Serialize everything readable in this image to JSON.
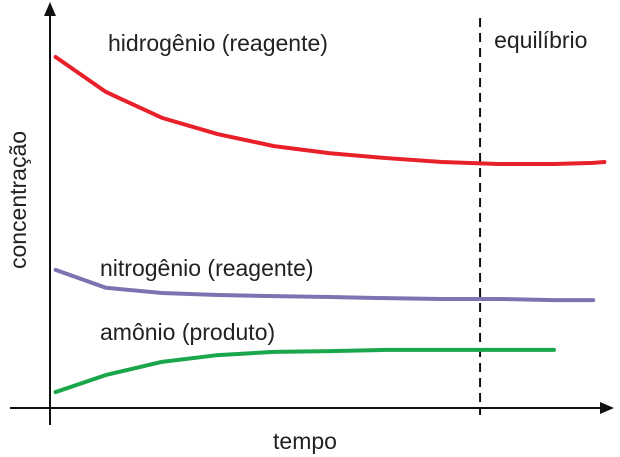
{
  "chart_data": {
    "type": "line",
    "x_label": "tempo",
    "y_label": "concentração",
    "x": [
      1,
      10,
      20,
      30,
      40,
      50,
      60,
      70,
      80,
      90,
      97,
      99
    ],
    "xlim": [
      0,
      100
    ],
    "ylim": [
      0,
      100
    ],
    "series": [
      {
        "name": "hidrogênio (reagente)",
        "color": "#e8202a",
        "values": [
          88.2,
          79.4,
          72.9,
          68.8,
          65.8,
          64.0,
          62.8,
          61.8,
          61.3,
          61.3,
          61.6,
          61.8
        ]
      },
      {
        "name": "nitrogênio (reagente)",
        "color": "#7b74b0",
        "values": [
          34.7,
          30.2,
          28.9,
          28.4,
          28.1,
          27.9,
          27.6,
          27.4,
          27.4,
          27.1,
          27.1,
          null
        ]
      },
      {
        "name": "amônio (produto)",
        "color": "#1aa64a",
        "values": [
          4.0,
          8.3,
          11.6,
          13.3,
          14.1,
          14.3,
          14.6,
          14.6,
          14.6,
          14.6,
          null,
          null
        ]
      }
    ],
    "annotation": {
      "x": 76.8,
      "label": "equilíbrio"
    }
  }
}
